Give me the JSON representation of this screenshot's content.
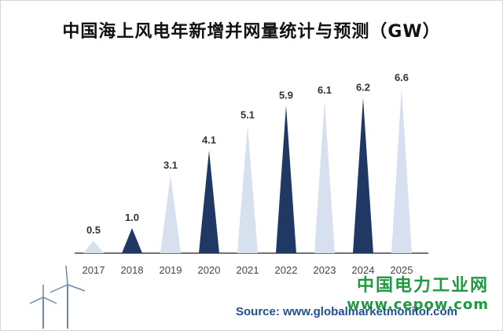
{
  "title": "中国海上风电年新增并网量统计与预测（GW）",
  "chart_data": {
    "type": "bar",
    "categories": [
      "2017",
      "2018",
      "2019",
      "2020",
      "2021",
      "2022",
      "2023",
      "2024",
      "2025"
    ],
    "values": [
      0.5,
      1.0,
      3.1,
      4.1,
      5.1,
      5.9,
      6.1,
      6.2,
      6.6
    ],
    "data_labels": [
      "0.5",
      "1.0",
      "3.1",
      "4.1",
      "5.1",
      "5.9",
      "6.1",
      "6.2",
      "6.6"
    ],
    "ylim": [
      0,
      6.6
    ],
    "mark_shape": "triangle",
    "colors": {
      "dark": "#1f3864",
      "light": "#d6e0ef"
    },
    "highlight": [
      false,
      true,
      false,
      true,
      false,
      true,
      false,
      true,
      false
    ],
    "grid": false,
    "legend": "none"
  },
  "watermark": {
    "chinese": "中国电力工业网",
    "url": "www.cepow.com"
  },
  "source": "Source: www.globalmarketmonitor.com"
}
